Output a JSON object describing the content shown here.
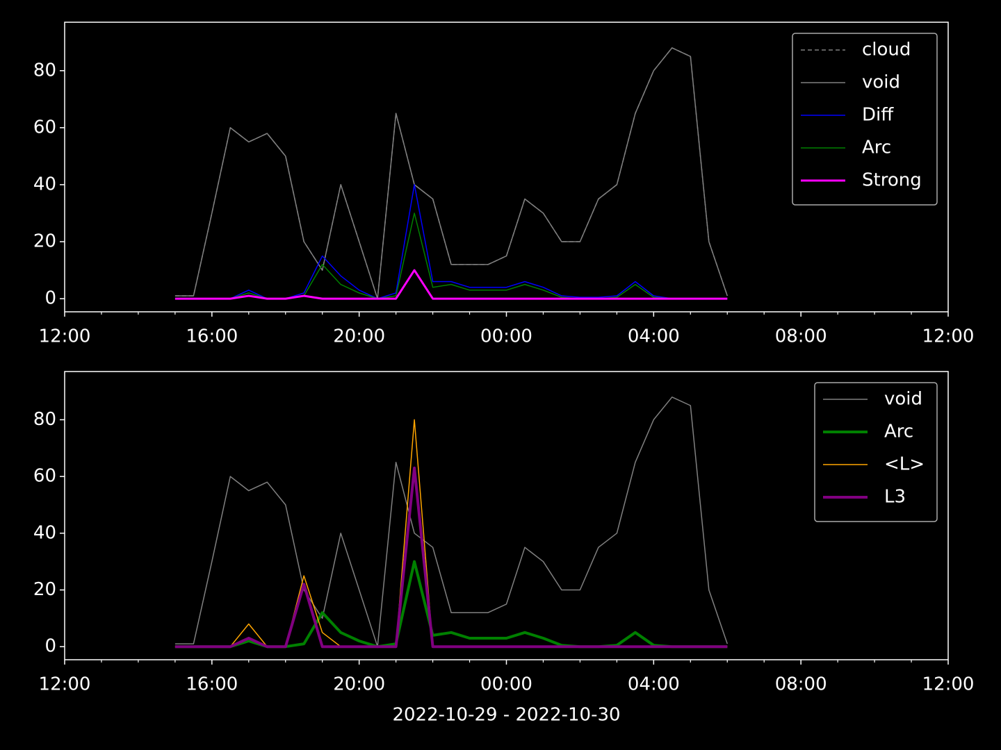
{
  "chart_data": [
    {
      "type": "line",
      "x": [
        15.0,
        15.5,
        16.0,
        16.5,
        17.0,
        17.5,
        18.0,
        18.5,
        19.0,
        19.5,
        20.0,
        20.5,
        21.0,
        21.5,
        22.0,
        22.5,
        23.0,
        23.5,
        24.0,
        24.5,
        25.0,
        25.5,
        26.0,
        26.5,
        27.0,
        27.5,
        28.0,
        28.5,
        29.0,
        29.5,
        30.0
      ],
      "series": [
        {
          "name": "cloud",
          "color": "#808080",
          "linestyle": "dashed",
          "linewidth": 1.5,
          "values": [
            1,
            1,
            30,
            60,
            55,
            58,
            50,
            20,
            10,
            40,
            20,
            0,
            65,
            40,
            35,
            12,
            12,
            12,
            15,
            35,
            30,
            20,
            20,
            35,
            40,
            65,
            80,
            88,
            85,
            20,
            1
          ]
        },
        {
          "name": "void",
          "color": "#808080",
          "linestyle": "solid",
          "linewidth": 1.5,
          "values": [
            1,
            1,
            30,
            60,
            55,
            58,
            50,
            20,
            10,
            40,
            20,
            0,
            65,
            40,
            35,
            12,
            12,
            12,
            15,
            35,
            30,
            20,
            20,
            35,
            40,
            65,
            80,
            88,
            85,
            20,
            1
          ]
        },
        {
          "name": "Diff",
          "color": "#0000ff",
          "linestyle": "solid",
          "linewidth": 1.5,
          "values": [
            0,
            0,
            0,
            0,
            3,
            0,
            0,
            2,
            15,
            8,
            3,
            0,
            2,
            40,
            6,
            6,
            4,
            4,
            4,
            6,
            4,
            1,
            0.5,
            0.5,
            1,
            6,
            1,
            0,
            0,
            0,
            0
          ]
        },
        {
          "name": "Arc",
          "color": "#008000",
          "linestyle": "solid",
          "linewidth": 1.5,
          "values": [
            0,
            0,
            0,
            0,
            2,
            0,
            0,
            1,
            12,
            5,
            2,
            0,
            1,
            30,
            4,
            5,
            3,
            3,
            3,
            5,
            3,
            0.5,
            0,
            0,
            0.5,
            5,
            0.5,
            0,
            0,
            0,
            0
          ]
        },
        {
          "name": "Strong",
          "color": "#ff00ff",
          "linestyle": "solid",
          "linewidth": 3,
          "values": [
            0,
            0,
            0,
            0,
            1,
            0,
            0,
            1,
            0,
            0,
            0,
            0,
            0,
            10,
            0,
            0,
            0,
            0,
            0,
            0,
            0,
            0,
            0,
            0,
            0,
            0,
            0,
            0,
            0,
            0,
            0
          ]
        }
      ],
      "xlim": [
        12,
        36
      ],
      "ylim": [
        -4.6,
        97
      ],
      "xticks": [
        {
          "value": 12,
          "label": "12:00"
        },
        {
          "value": 16,
          "label": "16:00"
        },
        {
          "value": 20,
          "label": "20:00"
        },
        {
          "value": 24,
          "label": "00:00"
        },
        {
          "value": 28,
          "label": "04:00"
        },
        {
          "value": 32,
          "label": "08:00"
        },
        {
          "value": 36,
          "label": "12:00"
        }
      ],
      "xminorticks": [
        13,
        14,
        15,
        17,
        18,
        19,
        21,
        22,
        23,
        25,
        26,
        27,
        29,
        30,
        31,
        33,
        34,
        35
      ],
      "yticks": [
        0,
        20,
        40,
        60,
        80
      ],
      "legend": "upper right"
    },
    {
      "type": "line",
      "x": [
        15.0,
        15.5,
        16.0,
        16.5,
        17.0,
        17.5,
        18.0,
        18.5,
        19.0,
        19.5,
        20.0,
        20.5,
        21.0,
        21.5,
        22.0,
        22.5,
        23.0,
        23.5,
        24.0,
        24.5,
        25.0,
        25.5,
        26.0,
        26.5,
        27.0,
        27.5,
        28.0,
        28.5,
        29.0,
        29.5,
        30.0
      ],
      "series": [
        {
          "name": "void",
          "color": "#808080",
          "linestyle": "solid",
          "linewidth": 1.5,
          "values": [
            1,
            1,
            30,
            60,
            55,
            58,
            50,
            20,
            10,
            40,
            20,
            0,
            65,
            40,
            35,
            12,
            12,
            12,
            15,
            35,
            30,
            20,
            20,
            35,
            40,
            65,
            80,
            88,
            85,
            20,
            1
          ]
        },
        {
          "name": "Arc",
          "color": "#008000",
          "linestyle": "solid",
          "linewidth": 4,
          "values": [
            0,
            0,
            0,
            0,
            2,
            0,
            0,
            1,
            12,
            5,
            2,
            0,
            1,
            30,
            4,
            5,
            3,
            3,
            3,
            5,
            3,
            0.5,
            0,
            0,
            0.5,
            5,
            0.5,
            0,
            0,
            0,
            0
          ]
        },
        {
          "name": "<L>",
          "color": "#ffa500",
          "linestyle": "solid",
          "linewidth": 1.5,
          "values": [
            0,
            0,
            0,
            0,
            8,
            0,
            0,
            25,
            5,
            0,
            0,
            0,
            0,
            80,
            0,
            0,
            0,
            0,
            0,
            0,
            0,
            0,
            0,
            0,
            0,
            0,
            0,
            0,
            0,
            0,
            0
          ]
        },
        {
          "name": "L3",
          "color": "#800080",
          "linestyle": "solid",
          "linewidth": 4,
          "values": [
            0,
            0,
            0,
            0,
            3,
            0,
            0,
            22,
            0,
            0,
            0,
            0,
            0,
            63,
            0,
            0,
            0,
            0,
            0,
            0,
            0,
            0,
            0,
            0,
            0,
            0,
            0,
            0,
            0,
            0,
            0
          ]
        }
      ],
      "xlim": [
        12,
        36
      ],
      "ylim": [
        -4.6,
        97
      ],
      "xticks": [
        {
          "value": 12,
          "label": "12:00"
        },
        {
          "value": 16,
          "label": "16:00"
        },
        {
          "value": 20,
          "label": "20:00"
        },
        {
          "value": 24,
          "label": "00:00"
        },
        {
          "value": 28,
          "label": "04:00"
        },
        {
          "value": 32,
          "label": "08:00"
        },
        {
          "value": 36,
          "label": "12:00"
        }
      ],
      "xminorticks": [
        13,
        14,
        15,
        17,
        18,
        19,
        21,
        22,
        23,
        25,
        26,
        27,
        29,
        30,
        31,
        33,
        34,
        35
      ],
      "yticks": [
        0,
        20,
        40,
        60,
        80
      ],
      "xlabel": "2022-10-29 - 2022-10-30",
      "legend": "upper right"
    }
  ]
}
